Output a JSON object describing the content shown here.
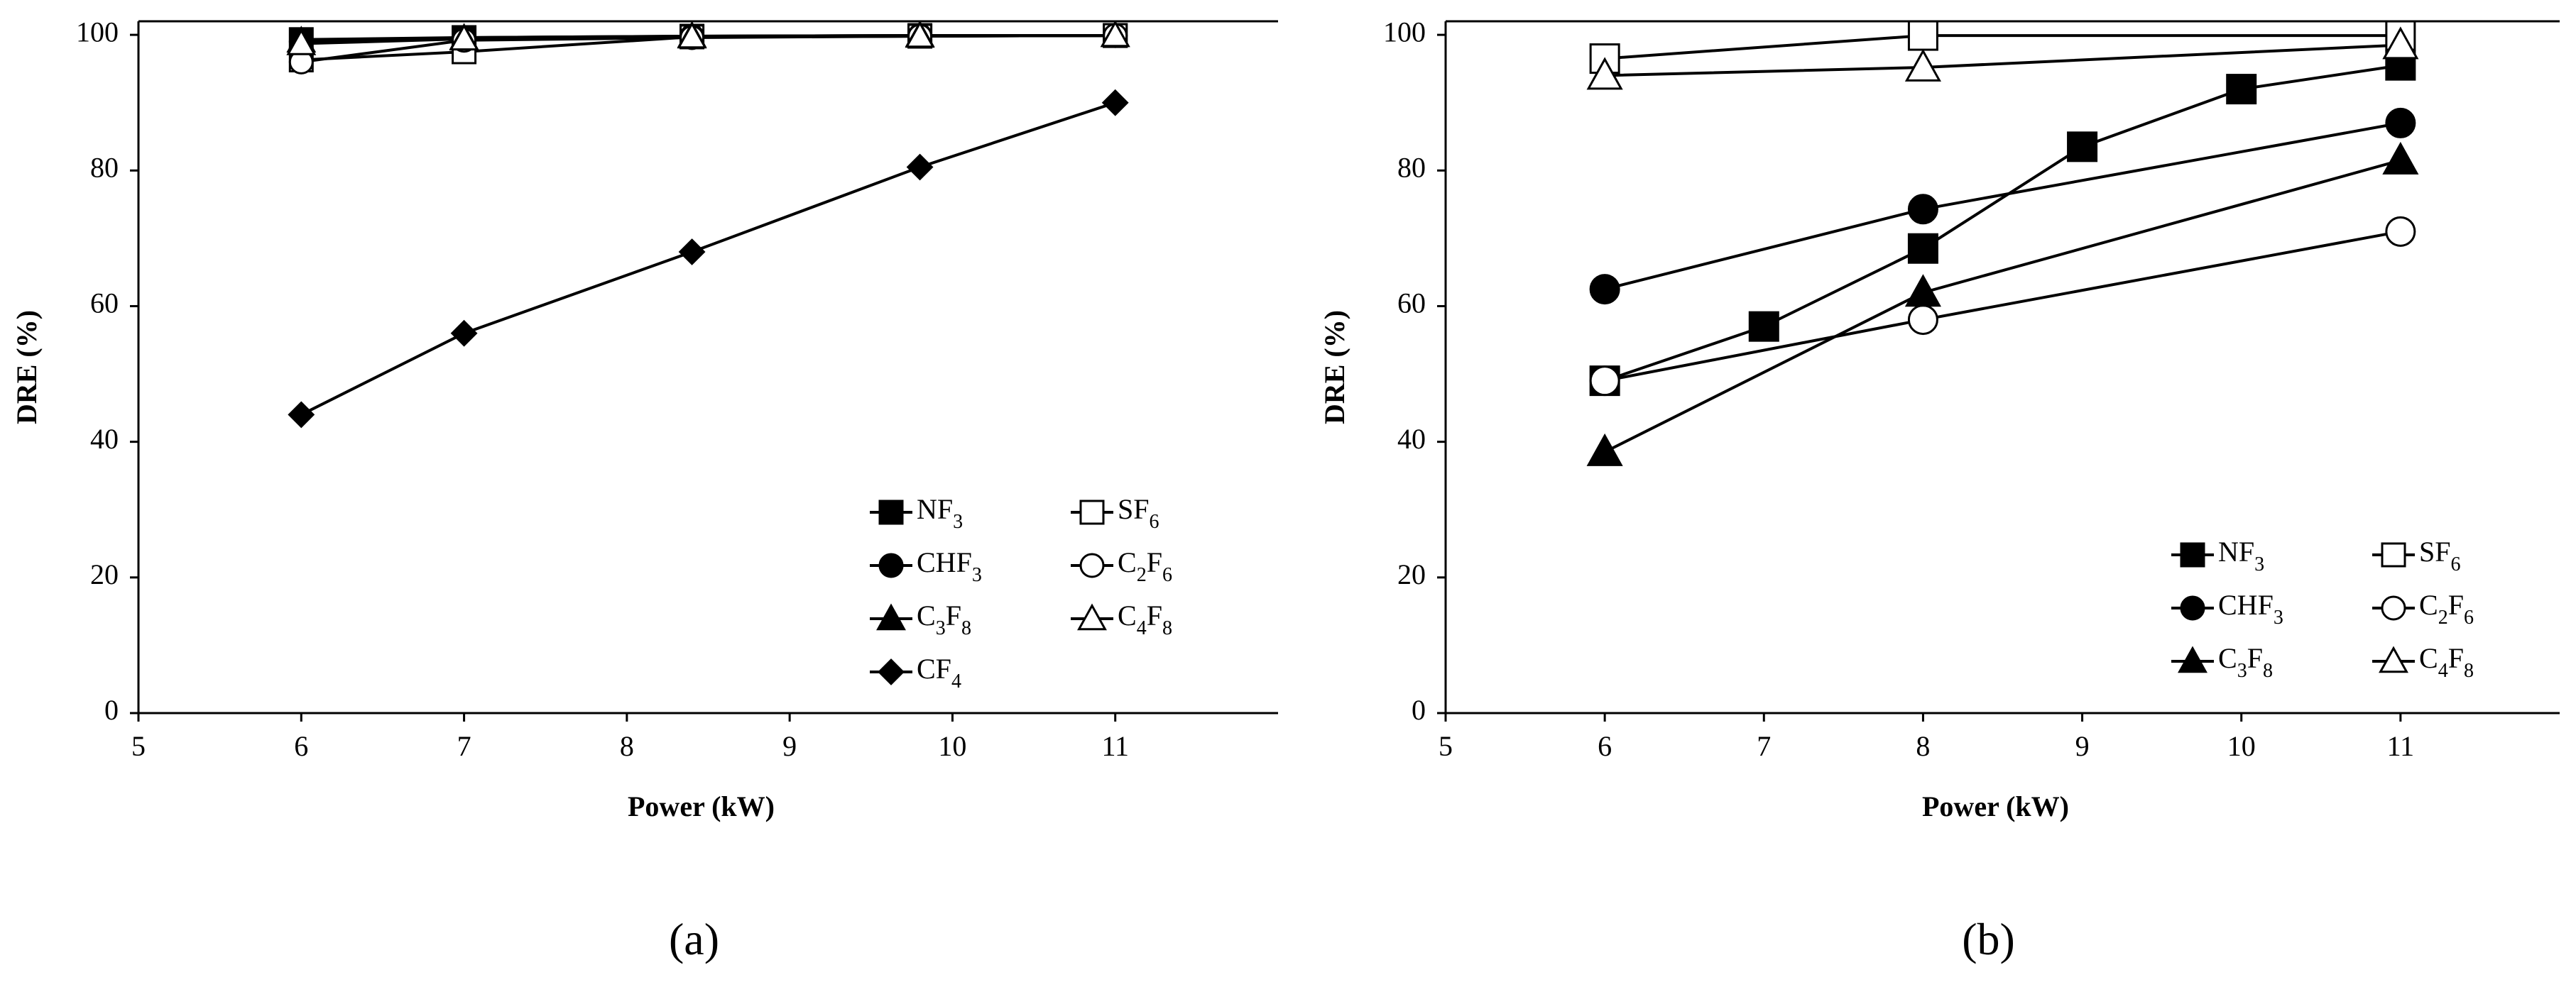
{
  "chart_data": [
    {
      "type": "line",
      "panel_label": "(a)",
      "xlabel": "Power (kW)",
      "ylabel": "DRE (%)",
      "xlim": [
        5,
        12
      ],
      "ylim": [
        0,
        102
      ],
      "xticks": [
        5,
        6,
        7,
        8,
        9,
        10,
        11
      ],
      "yticks": [
        0,
        20,
        40,
        60,
        80,
        100
      ],
      "grid": false,
      "legend_position": "bottom-right",
      "series": [
        {
          "name": "NF3",
          "label_main": "NF",
          "label_sub": "3",
          "marker": "square",
          "filled": true,
          "x": [
            6,
            7,
            8.4,
            9.8,
            11
          ],
          "y": [
            99.3,
            99.6,
            99.8,
            99.9,
            99.9
          ]
        },
        {
          "name": "SF6",
          "label_main": "SF",
          "label_sub": "6",
          "marker": "square",
          "filled": false,
          "x": [
            6,
            7,
            8.4,
            9.8,
            11
          ],
          "y": [
            96.3,
            97.5,
            99.7,
            99.8,
            99.9
          ]
        },
        {
          "name": "CHF3",
          "label_main": "CHF",
          "label_sub": "3",
          "marker": "circle",
          "filled": true,
          "x": [
            6,
            7,
            8.4,
            9.8,
            11
          ],
          "y": [
            99.0,
            99.6,
            99.8,
            99.9,
            99.9
          ]
        },
        {
          "name": "C2F6",
          "label_main": "C",
          "label_sub": "2",
          "label_main2": "F",
          "label_sub2": "6",
          "marker": "circle",
          "filled": false,
          "x": [
            6,
            7,
            8.4,
            9.8,
            11
          ],
          "y": [
            96.0,
            99.2,
            99.6,
            99.8,
            99.9
          ]
        },
        {
          "name": "C3F8",
          "label_main": "C",
          "label_sub": "3",
          "label_main2": "F",
          "label_sub2": "8",
          "marker": "triangle",
          "filled": true,
          "x": [
            6,
            7,
            8.4,
            9.8,
            11
          ],
          "y": [
            99.1,
            99.5,
            99.8,
            99.9,
            99.9
          ]
        },
        {
          "name": "C4F8",
          "label_main": "C",
          "label_sub": "4",
          "label_main2": "F",
          "label_sub2": "8",
          "marker": "triangle",
          "filled": false,
          "x": [
            6,
            7,
            8.4,
            9.8,
            11
          ],
          "y": [
            98.7,
            99.4,
            99.7,
            99.8,
            99.9
          ]
        },
        {
          "name": "CF4",
          "label_main": "CF",
          "label_sub": "4",
          "marker": "diamond",
          "filled": true,
          "x": [
            6,
            7,
            8.4,
            9.8,
            11
          ],
          "y": [
            44,
            56,
            68,
            80.5,
            90
          ]
        }
      ]
    },
    {
      "type": "line",
      "panel_label": "(b)",
      "xlabel": "Power (kW)",
      "ylabel": "DRE (%)",
      "xlim": [
        5,
        12
      ],
      "ylim": [
        0,
        102
      ],
      "xticks": [
        5,
        6,
        7,
        8,
        9,
        10,
        11
      ],
      "yticks": [
        0,
        20,
        40,
        60,
        80,
        100
      ],
      "grid": false,
      "legend_position": "bottom-right",
      "series": [
        {
          "name": "NF3",
          "label_main": "NF",
          "label_sub": "3",
          "marker": "square",
          "filled": true,
          "x": [
            6,
            7,
            8,
            9,
            10,
            11
          ],
          "y": [
            49,
            57,
            68.5,
            83.5,
            92,
            95.5
          ]
        },
        {
          "name": "SF6",
          "label_main": "SF",
          "label_sub": "6",
          "marker": "square",
          "filled": false,
          "x": [
            6,
            8,
            11
          ],
          "y": [
            96.5,
            99.9,
            99.9
          ]
        },
        {
          "name": "CHF3",
          "label_main": "CHF",
          "label_sub": "3",
          "marker": "circle",
          "filled": true,
          "x": [
            6,
            8,
            11
          ],
          "y": [
            62.5,
            74.3,
            87
          ]
        },
        {
          "name": "C2F6",
          "label_main": "C",
          "label_sub": "2",
          "label_main2": "F",
          "label_sub2": "6",
          "marker": "circle",
          "filled": false,
          "x": [
            6,
            8,
            11
          ],
          "y": [
            49,
            58,
            71
          ]
        },
        {
          "name": "C3F8",
          "label_main": "C",
          "label_sub": "3",
          "label_main2": "F",
          "label_sub2": "8",
          "marker": "triangle",
          "filled": true,
          "x": [
            6,
            8,
            11
          ],
          "y": [
            38.5,
            62,
            81.5
          ]
        },
        {
          "name": "C4F8",
          "label_main": "C",
          "label_sub": "4",
          "label_main2": "F",
          "label_sub2": "8",
          "marker": "triangle",
          "filled": false,
          "x": [
            6,
            8,
            11
          ],
          "y": [
            94,
            95.2,
            98.5
          ]
        }
      ]
    }
  ]
}
